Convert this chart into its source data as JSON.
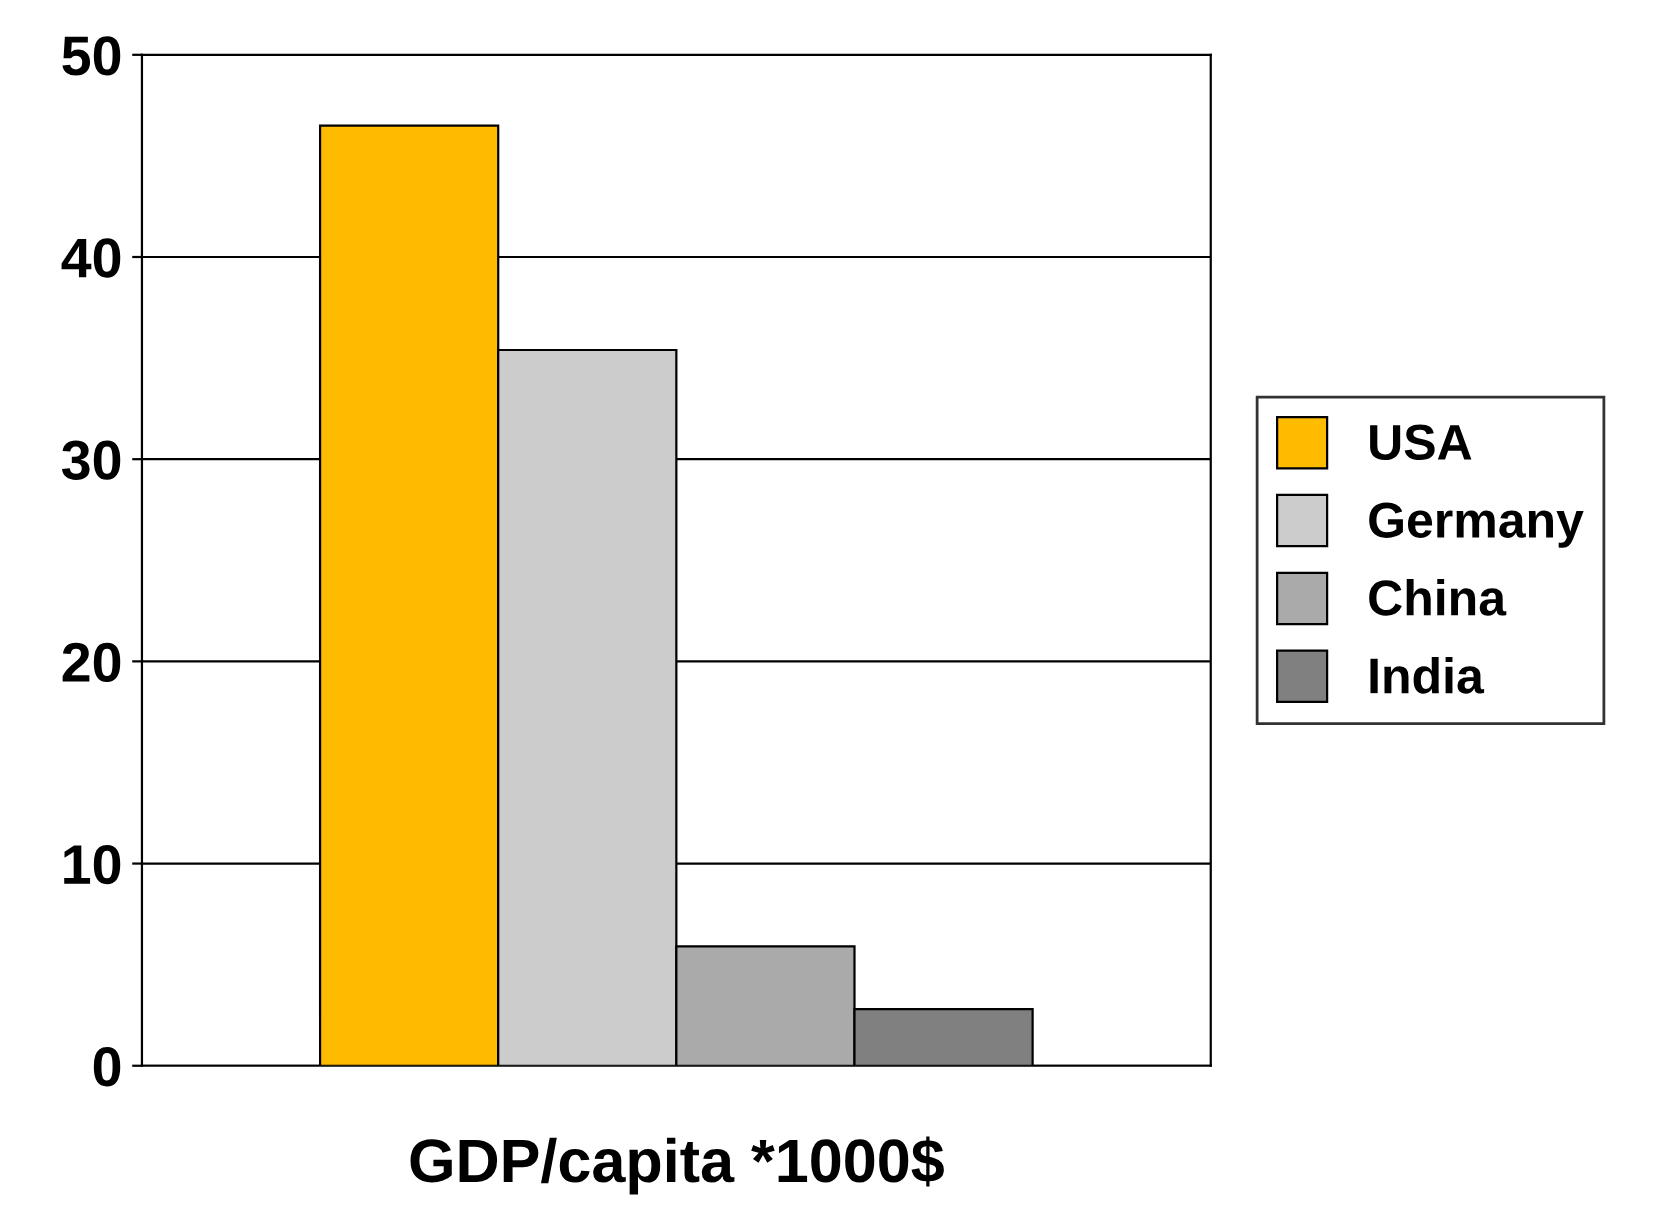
{
  "chart_data": {
    "type": "bar",
    "xlabel": "GDP/capita *1000$",
    "categories": [
      null
    ],
    "series": [
      {
        "name": "USA",
        "color": "#ffbb00",
        "values": [
          46.5
        ]
      },
      {
        "name": "Germany",
        "color": "#cccccc",
        "values": [
          35.4
        ]
      },
      {
        "name": "China",
        "color": "#aaaaaa",
        "values": [
          5.9
        ]
      },
      {
        "name": "India",
        "color": "#808080",
        "values": [
          2.8
        ]
      }
    ],
    "ylim": [
      0,
      50
    ],
    "yticks": [
      0,
      10,
      20,
      30,
      40,
      50
    ],
    "grid": "y",
    "legend": "right"
  }
}
